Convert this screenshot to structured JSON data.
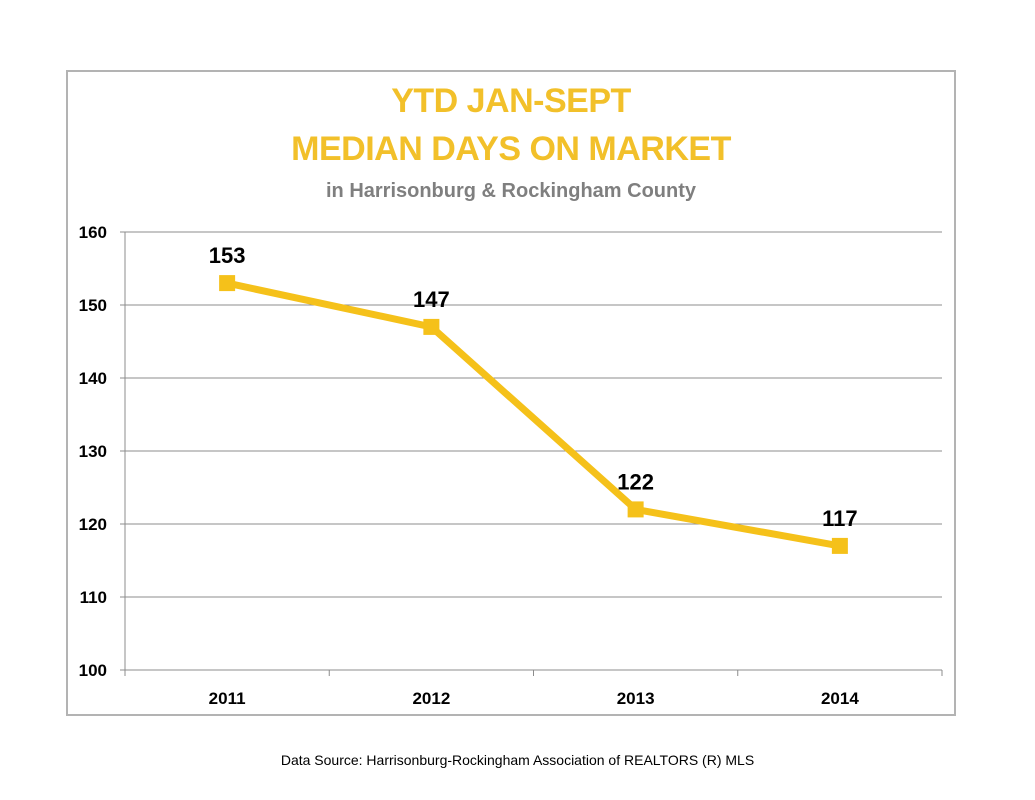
{
  "chart_data": {
    "type": "line",
    "title": "YTD JAN-SEPT",
    "title_line2": "MEDIAN DAYS ON MARKET",
    "subtitle": "in Harrisonburg  & Rockingham County",
    "categories": [
      "2011",
      "2012",
      "2013",
      "2014"
    ],
    "series": [
      {
        "values": [
          153,
          147,
          122,
          117
        ]
      }
    ],
    "data_labels": [
      "153",
      "147",
      "122",
      "117"
    ],
    "yticks": [
      "160",
      "150",
      "140",
      "130",
      "120",
      "110",
      "100"
    ],
    "ylim": [
      100,
      160
    ],
    "grid": true,
    "legend": "none",
    "xlabel": "",
    "ylabel": "",
    "colors": {
      "line": "#f5c11a",
      "title": "#f2c02a",
      "subtitle": "#7f7f7f",
      "grid": "#8c8c8c",
      "frame": "#b3b3b3"
    }
  },
  "footer": {
    "source": "Data Source: Harrisonburg-Rockingham Association of REALTORS (R) MLS"
  }
}
